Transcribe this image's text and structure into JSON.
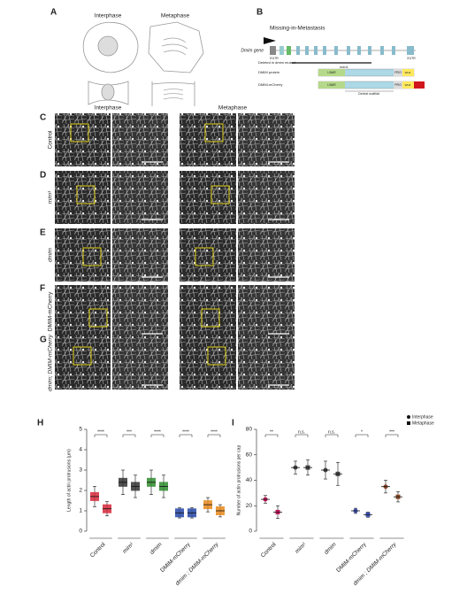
{
  "panel_labels": [
    "A",
    "B",
    "C",
    "D",
    "E",
    "F",
    "G",
    "H",
    "I"
  ],
  "panel_a": {
    "columns": [
      "Interphase",
      "Metaphase"
    ]
  },
  "panel_b": {
    "title": "Missing-in-Metastasis",
    "gene_label": "Dmim gene",
    "utr5": "5'UTR",
    "utr3": "3'UTR",
    "mutant_label": "mim1",
    "rows": [
      "Deleted in dmim mutant",
      "DMIM protein",
      "DMIM-mCherry"
    ],
    "domains": [
      "I-BAR",
      "PRO",
      "WH2"
    ],
    "scaffold": "Central scaffold"
  },
  "microscopy": {
    "columns": [
      "Interphase",
      "Metaphase"
    ],
    "rows": [
      "Control",
      "mim¹",
      "dmim",
      "DMIM-mCherry",
      "dmim; DMIM-mCherry"
    ]
  },
  "chart_data": [
    {
      "type": "dot",
      "ylabel": "Length of actin protrusions (μm)",
      "categories": [
        "Control",
        "mim¹",
        "dmim",
        "DMIM-mCherry",
        "dmim ; DMIM-mCherry"
      ],
      "category_colors": [
        "#d6283a",
        "#333333",
        "#2e8b2e",
        "#2646a8",
        "#e8891c"
      ],
      "series": [
        {
          "name": "Interphase",
          "values": [
            1.7,
            2.4,
            2.4,
            0.9,
            1.3
          ],
          "errors": [
            0.5,
            0.6,
            0.6,
            0.25,
            0.35
          ]
        },
        {
          "name": "Metaphase",
          "values": [
            1.1,
            2.2,
            2.2,
            0.9,
            1.0
          ],
          "errors": [
            0.35,
            0.55,
            0.55,
            0.25,
            0.3
          ]
        }
      ],
      "significance": [
        "****",
        "***",
        "****",
        "****",
        "****"
      ],
      "ylim": [
        0,
        5
      ],
      "yticks": [
        0,
        1,
        2,
        3,
        4,
        5
      ]
    },
    {
      "type": "dot",
      "ylabel": "Number of actin protrusions per cap",
      "categories": [
        "Control",
        "mim¹",
        "dmim",
        "DMIM-mCherry",
        "dmim ; DMIM-mCherry"
      ],
      "category_colors": [
        "#c2185b",
        "#444444",
        "#444444",
        "#3f51b5",
        "#8a4a2a"
      ],
      "series": [
        {
          "name": "Interphase",
          "marker": "circle",
          "values": [
            25,
            50,
            48,
            16,
            35
          ],
          "errors": [
            3,
            5,
            7,
            2,
            5
          ]
        },
        {
          "name": "Metaphase",
          "marker": "square",
          "values": [
            15,
            50,
            45,
            13,
            27
          ],
          "errors": [
            5,
            6,
            9,
            2,
            4
          ]
        }
      ],
      "significance": [
        "**",
        "n.s.",
        "n.s.",
        "*",
        "***"
      ],
      "ylim": [
        0,
        80
      ],
      "yticks": [
        0,
        20,
        40,
        60,
        80
      ],
      "legend": "upper right"
    }
  ]
}
